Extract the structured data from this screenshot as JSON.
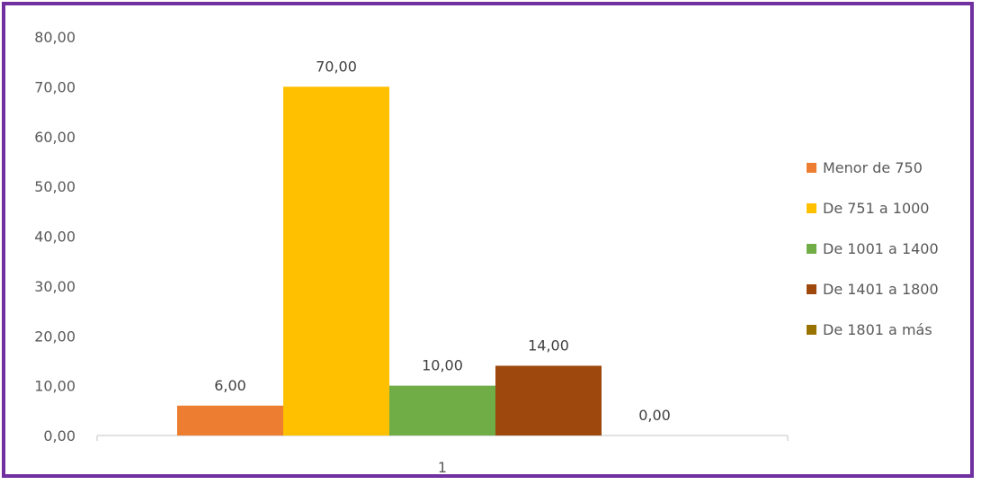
{
  "chart_data": {
    "type": "bar",
    "categories": [
      "1"
    ],
    "series": [
      {
        "name": "Menor de 750",
        "values": [
          6.0
        ],
        "label": "6,00",
        "color": "#ED7D31"
      },
      {
        "name": "De 751  a 1000",
        "values": [
          70.0
        ],
        "label": "70,00",
        "color": "#FFC000"
      },
      {
        "name": "De 1001 a 1400",
        "values": [
          10.0
        ],
        "label": "10,00",
        "color": "#70AD47"
      },
      {
        "name": "De 1401  a 1800",
        "values": [
          14.0
        ],
        "label": "14,00",
        "color": "#9E480E"
      },
      {
        "name": "De 1801 a más",
        "values": [
          0.0
        ],
        "label": "0,00",
        "color": "#997300"
      }
    ],
    "ylim": [
      0,
      80
    ],
    "yticks": [
      {
        "value": 0,
        "label": "0,00"
      },
      {
        "value": 10,
        "label": "10,00"
      },
      {
        "value": 20,
        "label": "20,00"
      },
      {
        "value": 30,
        "label": "30,00"
      },
      {
        "value": 40,
        "label": "40,00"
      },
      {
        "value": 50,
        "label": "50,00"
      },
      {
        "value": 60,
        "label": "60,00"
      },
      {
        "value": 70,
        "label": "70,00"
      },
      {
        "value": 80,
        "label": "80,00"
      }
    ],
    "grid": false,
    "legend_position": "right",
    "frame_color": "#7030A0",
    "axis_color": "#D9D9D9"
  }
}
